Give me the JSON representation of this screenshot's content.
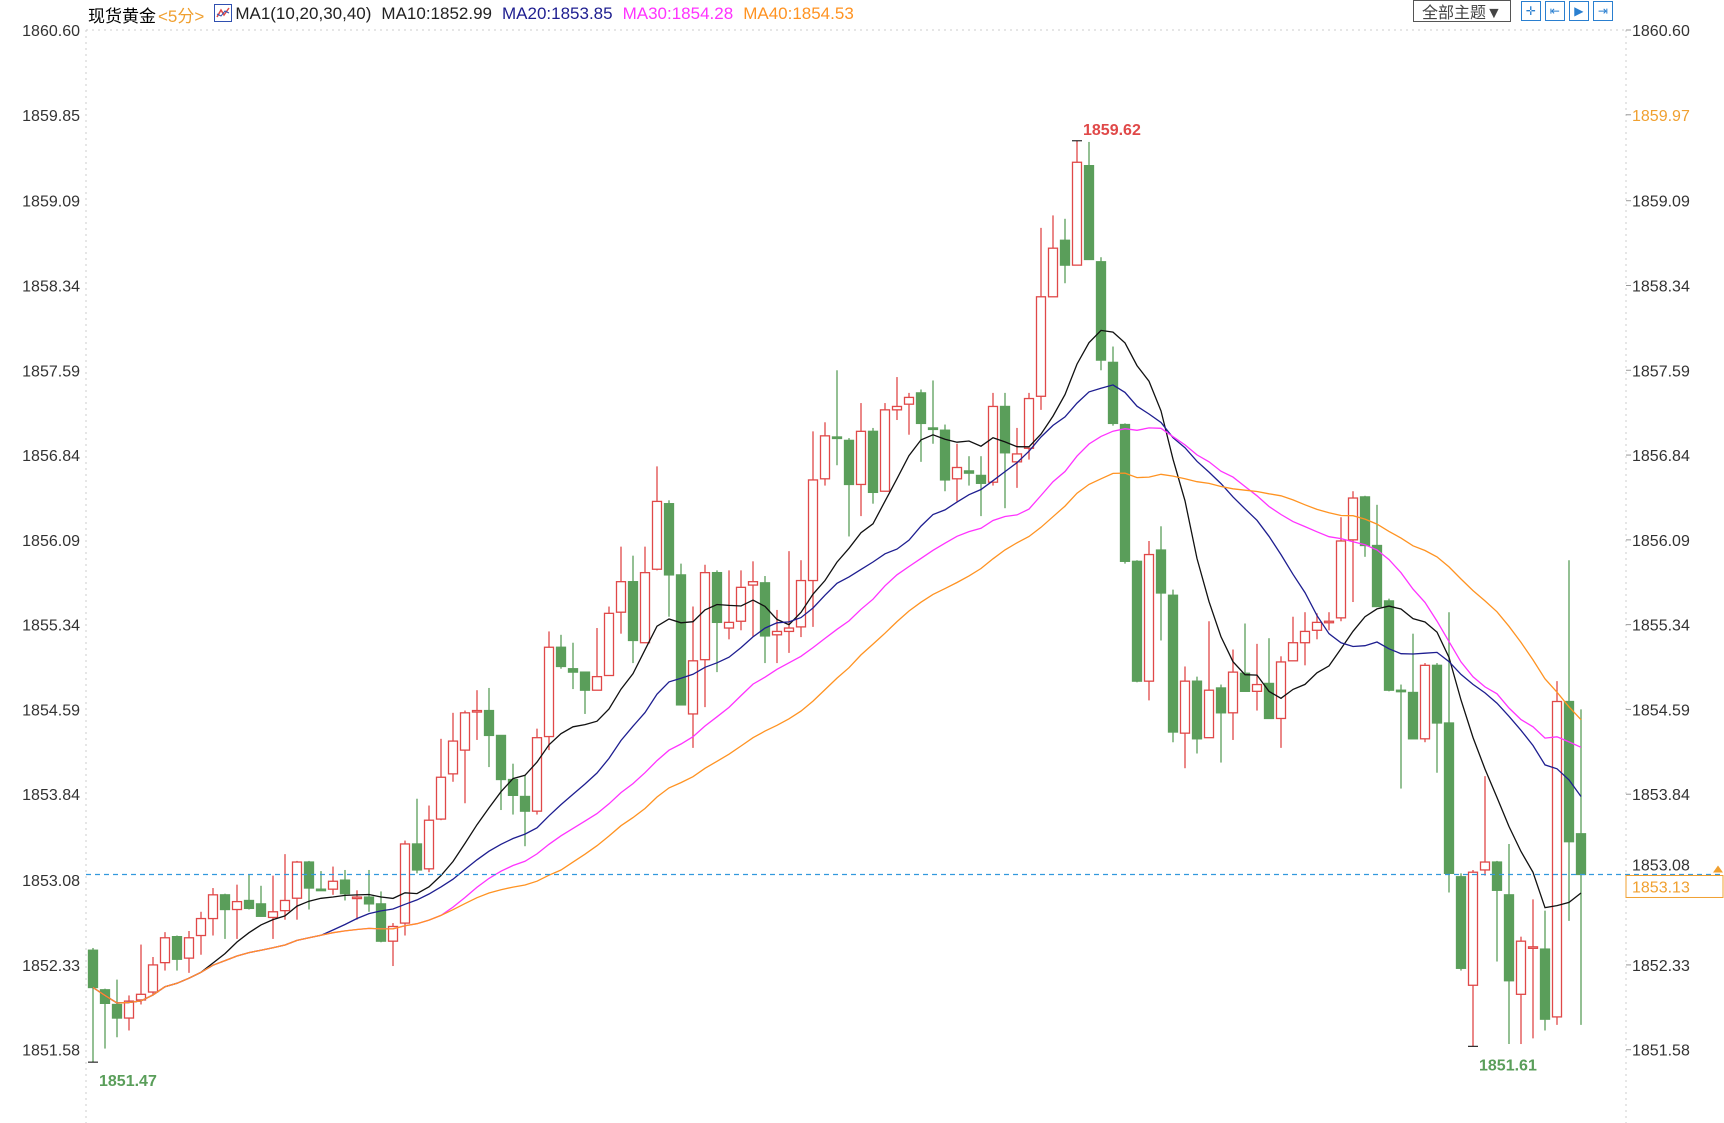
{
  "legend": {
    "instrument": "现货黄金",
    "period": "<5分>",
    "ma_icon": "ma-chart-icon",
    "ma_params": "MA1(10,20,30,40)",
    "ma10": "MA10:1852.99",
    "ma20": "MA20:1853.85",
    "ma30": "MA30:1854.28",
    "ma40": "MA40:1854.53"
  },
  "toolbar": {
    "theme_label": "全部主题▼",
    "buttons": [
      {
        "icon": "crosshair-icon",
        "glyph": "✛"
      },
      {
        "icon": "jump-start-icon",
        "glyph": "⇤"
      },
      {
        "icon": "play-icon",
        "glyph": "▶"
      },
      {
        "icon": "jump-end-icon",
        "glyph": "⇥"
      }
    ]
  },
  "colors": {
    "up": "#e04848",
    "down": "#5a9e5a",
    "ma10": "#111111",
    "ma20": "#1e1e90",
    "ma30": "#ff33ff",
    "ma40": "#ff9322",
    "price_line": "#3399dd",
    "highlight": "#f0a030"
  },
  "chart_data": {
    "type": "candlestick",
    "title": "现货黄金 <5分>",
    "ylim": [
      1851.58,
      1860.6
    ],
    "y_ticks_left": [
      "1860.60",
      "1859.85",
      "1859.09",
      "1858.34",
      "1857.59",
      "1856.84",
      "1856.09",
      "1855.34",
      "1854.59",
      "1853.84",
      "1853.08",
      "1852.33",
      "1851.58"
    ],
    "y_ticks_right": [
      "1860.60",
      "1859.97",
      "1859.09",
      "1858.34",
      "1857.59",
      "1856.84",
      "1856.09",
      "1855.34",
      "1854.59",
      "1853.84",
      "1853.08",
      "1852.33",
      "1851.58"
    ],
    "right_highlight_label": "1859.97",
    "current_price": "1853.13",
    "annotations": [
      {
        "text": "1859.62",
        "candle": 83,
        "kind": "high"
      },
      {
        "text": "1851.47",
        "candle": 1,
        "kind": "low"
      },
      {
        "text": "1851.61",
        "candle": 116,
        "kind": "low"
      }
    ],
    "ma_periods": [
      10,
      20,
      30,
      40
    ],
    "ohlc": [
      [
        1852.46,
        1852.48,
        1851.47,
        1852.13
      ],
      [
        1852.11,
        1852.12,
        1851.59,
        1851.99
      ],
      [
        1851.98,
        1852.2,
        1851.69,
        1851.86
      ],
      [
        1851.86,
        1852.06,
        1851.75,
        1852.01
      ],
      [
        1852.02,
        1852.51,
        1851.98,
        1852.07
      ],
      [
        1852.09,
        1852.4,
        1852.06,
        1852.33
      ],
      [
        1852.35,
        1852.62,
        1852.28,
        1852.57
      ],
      [
        1852.58,
        1852.59,
        1852.28,
        1852.38
      ],
      [
        1852.39,
        1852.63,
        1852.26,
        1852.57
      ],
      [
        1852.59,
        1852.8,
        1852.42,
        1852.74
      ],
      [
        1852.74,
        1853.01,
        1852.59,
        1852.95
      ],
      [
        1852.95,
        1852.96,
        1852.56,
        1852.82
      ],
      [
        1852.82,
        1853.04,
        1852.56,
        1852.89
      ],
      [
        1852.9,
        1853.13,
        1852.82,
        1852.83
      ],
      [
        1852.87,
        1853.03,
        1852.76,
        1852.76
      ],
      [
        1852.75,
        1853.12,
        1852.56,
        1852.8
      ],
      [
        1852.81,
        1853.31,
        1852.73,
        1852.9
      ],
      [
        1852.92,
        1853.25,
        1852.73,
        1853.24
      ],
      [
        1853.24,
        1853.25,
        1852.82,
        1853.01
      ],
      [
        1853.0,
        1853.16,
        1852.99,
        1852.99
      ],
      [
        1853.0,
        1853.2,
        1852.95,
        1853.07
      ],
      [
        1853.08,
        1853.17,
        1852.9,
        1852.96
      ],
      [
        1852.93,
        1852.99,
        1852.73,
        1852.93
      ],
      [
        1852.93,
        1853.17,
        1852.8,
        1852.87
      ],
      [
        1852.87,
        1852.98,
        1852.53,
        1852.54
      ],
      [
        1852.54,
        1852.7,
        1852.32,
        1852.67
      ],
      [
        1852.7,
        1853.43,
        1852.59,
        1853.4
      ],
      [
        1853.4,
        1853.8,
        1853.14,
        1853.17
      ],
      [
        1853.18,
        1853.74,
        1853.15,
        1853.61
      ],
      [
        1853.62,
        1854.33,
        1853.61,
        1853.99
      ],
      [
        1854.02,
        1854.56,
        1853.95,
        1854.31
      ],
      [
        1854.23,
        1854.58,
        1853.76,
        1854.56
      ],
      [
        1854.58,
        1854.76,
        1854.32,
        1854.58
      ],
      [
        1854.58,
        1854.78,
        1854.08,
        1854.36
      ],
      [
        1854.36,
        1854.36,
        1853.7,
        1853.97
      ],
      [
        1853.97,
        1854.11,
        1853.66,
        1853.83
      ],
      [
        1853.82,
        1854.01,
        1853.38,
        1853.69
      ],
      [
        1853.69,
        1854.42,
        1853.66,
        1854.34
      ],
      [
        1854.35,
        1855.28,
        1854.23,
        1855.14
      ],
      [
        1855.14,
        1855.25,
        1854.95,
        1854.97
      ],
      [
        1854.95,
        1855.18,
        1854.77,
        1854.92
      ],
      [
        1854.92,
        1854.92,
        1854.55,
        1854.76
      ],
      [
        1854.76,
        1855.31,
        1854.76,
        1854.88
      ],
      [
        1854.89,
        1855.5,
        1854.89,
        1855.44
      ],
      [
        1855.45,
        1856.03,
        1855.26,
        1855.72
      ],
      [
        1855.72,
        1855.95,
        1855.0,
        1855.2
      ],
      [
        1855.18,
        1856.03,
        1855.18,
        1855.8
      ],
      [
        1855.83,
        1856.74,
        1855.82,
        1856.43
      ],
      [
        1856.41,
        1856.44,
        1855.41,
        1855.78
      ],
      [
        1855.78,
        1855.88,
        1854.63,
        1854.63
      ],
      [
        1854.55,
        1855.5,
        1854.25,
        1855.02
      ],
      [
        1855.03,
        1855.87,
        1854.61,
        1855.8
      ],
      [
        1855.8,
        1855.82,
        1854.92,
        1855.36
      ],
      [
        1855.31,
        1855.82,
        1855.21,
        1855.36
      ],
      [
        1855.37,
        1855.82,
        1855.29,
        1855.67
      ],
      [
        1855.69,
        1855.9,
        1855.23,
        1855.72
      ],
      [
        1855.71,
        1855.77,
        1855.0,
        1855.24
      ],
      [
        1855.25,
        1855.47,
        1855.0,
        1855.28
      ],
      [
        1855.28,
        1855.99,
        1855.09,
        1855.31
      ],
      [
        1855.32,
        1855.91,
        1855.23,
        1855.73
      ],
      [
        1855.73,
        1857.05,
        1855.32,
        1856.62
      ],
      [
        1856.63,
        1857.13,
        1856.57,
        1857.01
      ],
      [
        1857.0,
        1857.59,
        1856.75,
        1856.99
      ],
      [
        1856.97,
        1856.99,
        1856.12,
        1856.58
      ],
      [
        1856.58,
        1857.3,
        1856.3,
        1857.05
      ],
      [
        1857.05,
        1857.08,
        1856.41,
        1856.51
      ],
      [
        1856.52,
        1857.3,
        1856.52,
        1857.24
      ],
      [
        1857.24,
        1857.53,
        1857.15,
        1857.27
      ],
      [
        1857.29,
        1857.39,
        1857.02,
        1857.35
      ],
      [
        1857.39,
        1857.42,
        1856.78,
        1857.12
      ],
      [
        1857.08,
        1857.5,
        1856.94,
        1857.07
      ],
      [
        1857.06,
        1857.11,
        1856.52,
        1856.62
      ],
      [
        1856.63,
        1856.94,
        1856.43,
        1856.73
      ],
      [
        1856.7,
        1856.83,
        1856.57,
        1856.68
      ],
      [
        1856.66,
        1856.83,
        1856.3,
        1856.59
      ],
      [
        1856.6,
        1857.39,
        1856.57,
        1857.27
      ],
      [
        1857.27,
        1857.39,
        1856.37,
        1856.86
      ],
      [
        1856.78,
        1857.08,
        1856.55,
        1856.85
      ],
      [
        1856.9,
        1857.39,
        1856.8,
        1857.34
      ],
      [
        1857.36,
        1858.85,
        1857.24,
        1858.24
      ],
      [
        1858.24,
        1858.96,
        1858.24,
        1858.67
      ],
      [
        1858.74,
        1858.93,
        1858.36,
        1858.52
      ],
      [
        1858.52,
        1859.62,
        1858.52,
        1859.43
      ],
      [
        1859.4,
        1859.61,
        1858.57,
        1858.57
      ],
      [
        1858.55,
        1858.59,
        1857.59,
        1857.68
      ],
      [
        1857.66,
        1857.8,
        1857.1,
        1857.12
      ],
      [
        1857.11,
        1857.12,
        1855.88,
        1855.9
      ],
      [
        1855.9,
        1855.91,
        1854.83,
        1854.84
      ],
      [
        1854.84,
        1856.08,
        1854.67,
        1855.96
      ],
      [
        1856.0,
        1856.21,
        1855.2,
        1855.62
      ],
      [
        1855.6,
        1855.65,
        1854.3,
        1854.39
      ],
      [
        1854.38,
        1854.97,
        1854.07,
        1854.84
      ],
      [
        1854.84,
        1854.88,
        1854.2,
        1854.33
      ],
      [
        1854.34,
        1855.37,
        1854.34,
        1854.76
      ],
      [
        1854.78,
        1854.81,
        1854.12,
        1854.56
      ],
      [
        1854.56,
        1855.12,
        1854.32,
        1854.92
      ],
      [
        1854.91,
        1855.35,
        1854.75,
        1854.75
      ],
      [
        1854.75,
        1855.17,
        1854.58,
        1854.81
      ],
      [
        1854.82,
        1855.22,
        1854.51,
        1854.51
      ],
      [
        1854.51,
        1855.06,
        1854.25,
        1855.01
      ],
      [
        1855.02,
        1855.41,
        1855.02,
        1855.18
      ],
      [
        1855.18,
        1855.45,
        1854.98,
        1855.28
      ],
      [
        1855.29,
        1855.44,
        1855.21,
        1855.36
      ],
      [
        1855.36,
        1855.45,
        1855.29,
        1855.37
      ],
      [
        1855.4,
        1856.29,
        1855.37,
        1856.08
      ],
      [
        1856.09,
        1856.52,
        1855.54,
        1856.46
      ],
      [
        1856.47,
        1856.48,
        1855.94,
        1856.04
      ],
      [
        1856.04,
        1856.4,
        1855.5,
        1855.5
      ],
      [
        1855.55,
        1855.57,
        1854.75,
        1854.76
      ],
      [
        1854.76,
        1854.81,
        1853.89,
        1854.75
      ],
      [
        1854.74,
        1855.26,
        1854.33,
        1854.33
      ],
      [
        1854.33,
        1855.0,
        1854.3,
        1854.98
      ],
      [
        1854.98,
        1855.0,
        1854.03,
        1854.47
      ],
      [
        1854.47,
        1855.45,
        1852.97,
        1853.14
      ],
      [
        1853.11,
        1853.14,
        1852.28,
        1852.3
      ],
      [
        1852.15,
        1853.17,
        1851.61,
        1853.15
      ],
      [
        1853.17,
        1854.0,
        1853.12,
        1853.24
      ],
      [
        1853.24,
        1853.25,
        1852.36,
        1852.99
      ],
      [
        1852.95,
        1853.4,
        1851.63,
        1852.19
      ],
      [
        1852.07,
        1852.58,
        1851.63,
        1852.54
      ],
      [
        1852.49,
        1852.91,
        1851.68,
        1852.49
      ],
      [
        1852.47,
        1852.81,
        1851.75,
        1851.85
      ],
      [
        1851.87,
        1854.84,
        1851.8,
        1854.66
      ],
      [
        1854.66,
        1855.91,
        1852.72,
        1853.42
      ],
      [
        1853.49,
        1854.59,
        1851.8,
        1853.13
      ]
    ]
  }
}
